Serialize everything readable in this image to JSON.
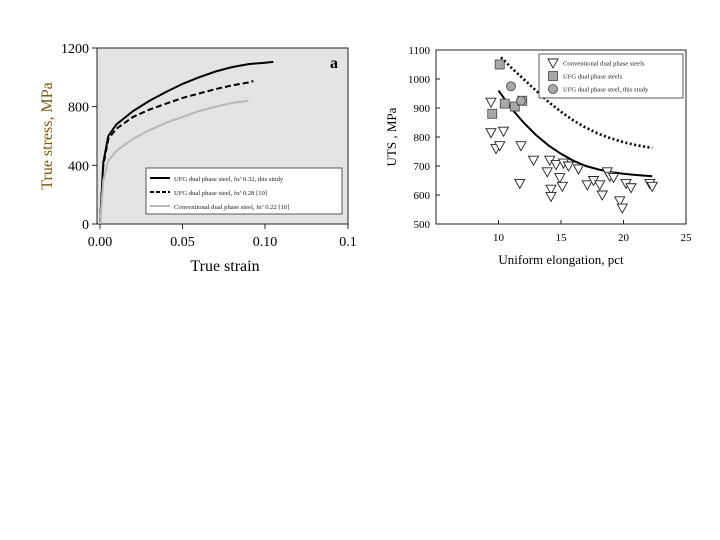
{
  "chart_data": [
    {
      "type": "line",
      "panel_label": "a",
      "xlabel": "True strain",
      "ylabel": "True stress, MPa",
      "xlim": [
        0,
        0.1
      ],
      "ylim": [
        0,
        1200
      ],
      "x_ticks": [
        "0.00",
        "0.05",
        "0.10",
        "0.1"
      ],
      "y_ticks": [
        "0",
        "400",
        "800",
        "1200"
      ],
      "legend_position": "bottom-right",
      "series": [
        {
          "name": "UFG dual phase steel, fα’ 0.32, this study",
          "color": "#000000",
          "dash": "solid",
          "x": [
            0,
            0.002,
            0.005,
            0.01,
            0.02,
            0.03,
            0.04,
            0.05,
            0.06,
            0.07,
            0.08,
            0.09,
            0.1,
            0.105
          ],
          "y": [
            0,
            420,
            600,
            680,
            770,
            840,
            900,
            955,
            1000,
            1040,
            1070,
            1090,
            1100,
            1105
          ]
        },
        {
          "name": "UFG dual phase steel, fα’ 0.28 [10]",
          "color": "#000000",
          "dash": "dashed",
          "x": [
            0,
            0.002,
            0.005,
            0.01,
            0.02,
            0.03,
            0.04,
            0.05,
            0.06,
            0.07,
            0.08,
            0.09,
            0.093
          ],
          "y": [
            0,
            400,
            580,
            650,
            730,
            780,
            820,
            860,
            890,
            920,
            945,
            965,
            975
          ]
        },
        {
          "name": "Conventional dual phase steel, fα’ 0.22 [10]",
          "color": "#b8b8b8",
          "dash": "solid",
          "x": [
            0,
            0.002,
            0.005,
            0.01,
            0.02,
            0.03,
            0.04,
            0.05,
            0.06,
            0.07,
            0.08,
            0.09
          ],
          "y": [
            0,
            300,
            430,
            500,
            580,
            640,
            690,
            730,
            770,
            800,
            825,
            840
          ]
        }
      ]
    },
    {
      "type": "scatter",
      "xlabel": "Uniform elongation, pct",
      "ylabel": "UTS , MPa",
      "xlim": [
        5,
        25
      ],
      "ylim": [
        500,
        1100
      ],
      "x_ticks": [
        "10",
        "15",
        "20",
        "25"
      ],
      "y_ticks": [
        "500",
        "600",
        "700",
        "800",
        "900",
        "1000",
        "1100"
      ],
      "legend_position": "top-right",
      "series": [
        {
          "name": "Conventional dual phase steels",
          "marker": "triangle-down",
          "fill": "#ffffff",
          "points": [
            [
              9.4,
              920
            ],
            [
              9.4,
              815
            ],
            [
              9.8,
              760
            ],
            [
              10.1,
              770
            ],
            [
              10.4,
              820
            ],
            [
              11.7,
              640
            ],
            [
              11.8,
              770
            ],
            [
              12.8,
              720
            ],
            [
              13.9,
              680
            ],
            [
              14.1,
              720
            ],
            [
              14.2,
              620
            ],
            [
              14.2,
              595
            ],
            [
              14.6,
              705
            ],
            [
              14.9,
              660
            ],
            [
              15.1,
              630
            ],
            [
              15.2,
              710
            ],
            [
              15.6,
              700
            ],
            [
              16.4,
              690
            ],
            [
              17.1,
              635
            ],
            [
              17.6,
              650
            ],
            [
              18.1,
              635
            ],
            [
              18.3,
              600
            ],
            [
              18.7,
              680
            ],
            [
              18.9,
              665
            ],
            [
              19.2,
              660
            ],
            [
              19.7,
              580
            ],
            [
              19.9,
              555
            ],
            [
              20.2,
              640
            ],
            [
              20.6,
              625
            ],
            [
              22.1,
              640
            ],
            [
              22.3,
              630
            ]
          ]
        },
        {
          "name": "UFG dual phase steels",
          "marker": "square",
          "fill": "#a8a8a8",
          "points": [
            [
              9.5,
              880
            ],
            [
              10.1,
              1050
            ],
            [
              10.5,
              915
            ],
            [
              11.3,
              905
            ],
            [
              11.9,
              925
            ]
          ]
        },
        {
          "name": "UFG dual phase steel, this study",
          "marker": "circle",
          "fill": "#a8a8a8",
          "points": [
            [
              11.0,
              975
            ],
            [
              11.8,
              925
            ]
          ]
        }
      ],
      "curves": [
        {
          "dash": "solid",
          "x": [
            10,
            11,
            12,
            13,
            14,
            15,
            16,
            17,
            18,
            19,
            20,
            21,
            22.3
          ],
          "y": [
            960,
            900,
            850,
            807,
            771,
            742,
            718,
            700,
            688,
            679,
            673,
            669,
            665
          ]
        },
        {
          "dash": "dotted",
          "x": [
            10.2,
            11,
            12,
            13,
            14,
            15,
            16,
            17,
            18,
            19,
            20,
            21,
            22.3
          ],
          "y": [
            1075,
            1040,
            1000,
            960,
            921,
            887,
            857,
            832,
            811,
            795,
            782,
            772,
            762
          ]
        }
      ]
    }
  ]
}
